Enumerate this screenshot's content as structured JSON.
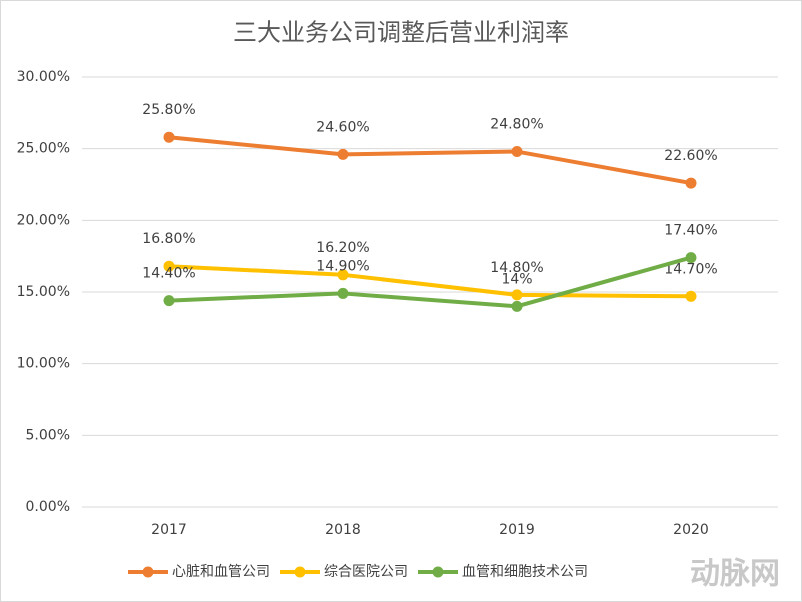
{
  "chart_data": {
    "type": "line",
    "title": "三大业务公司调整后营业利润率",
    "categories": [
      "2017",
      "2018",
      "2019",
      "2020"
    ],
    "series": [
      {
        "name": "心脏和血管公司",
        "color": "#ed7d31",
        "values": [
          25.8,
          24.6,
          24.8,
          22.6
        ],
        "value_labels": [
          "25.80%",
          "24.60%",
          "24.80%",
          "22.60%"
        ]
      },
      {
        "name": "综合医院公司",
        "color": "#ffc000",
        "values": [
          16.8,
          16.2,
          14.8,
          14.7
        ],
        "value_labels": [
          "16.80%",
          "16.20%",
          "14.80%",
          "14.70%"
        ]
      },
      {
        "name": "血管和细胞技术公司",
        "color": "#70ad47",
        "values": [
          14.4,
          14.9,
          14,
          17.4
        ],
        "value_labels": [
          "14.40%",
          "14.90%",
          "14%",
          "17.40%"
        ]
      }
    ],
    "ylim": [
      0,
      30
    ],
    "yticks": [
      {
        "value": 0,
        "label": "0.00%"
      },
      {
        "value": 5,
        "label": "5.00%"
      },
      {
        "value": 10,
        "label": "10.00%"
      },
      {
        "value": 15,
        "label": "15.00%"
      },
      {
        "value": 20,
        "label": "20.00%"
      },
      {
        "value": 25,
        "label": "25.00%"
      },
      {
        "value": 30,
        "label": "30.00%"
      }
    ],
    "grid": true,
    "legend": "bottom",
    "watermark": "动脉网"
  }
}
